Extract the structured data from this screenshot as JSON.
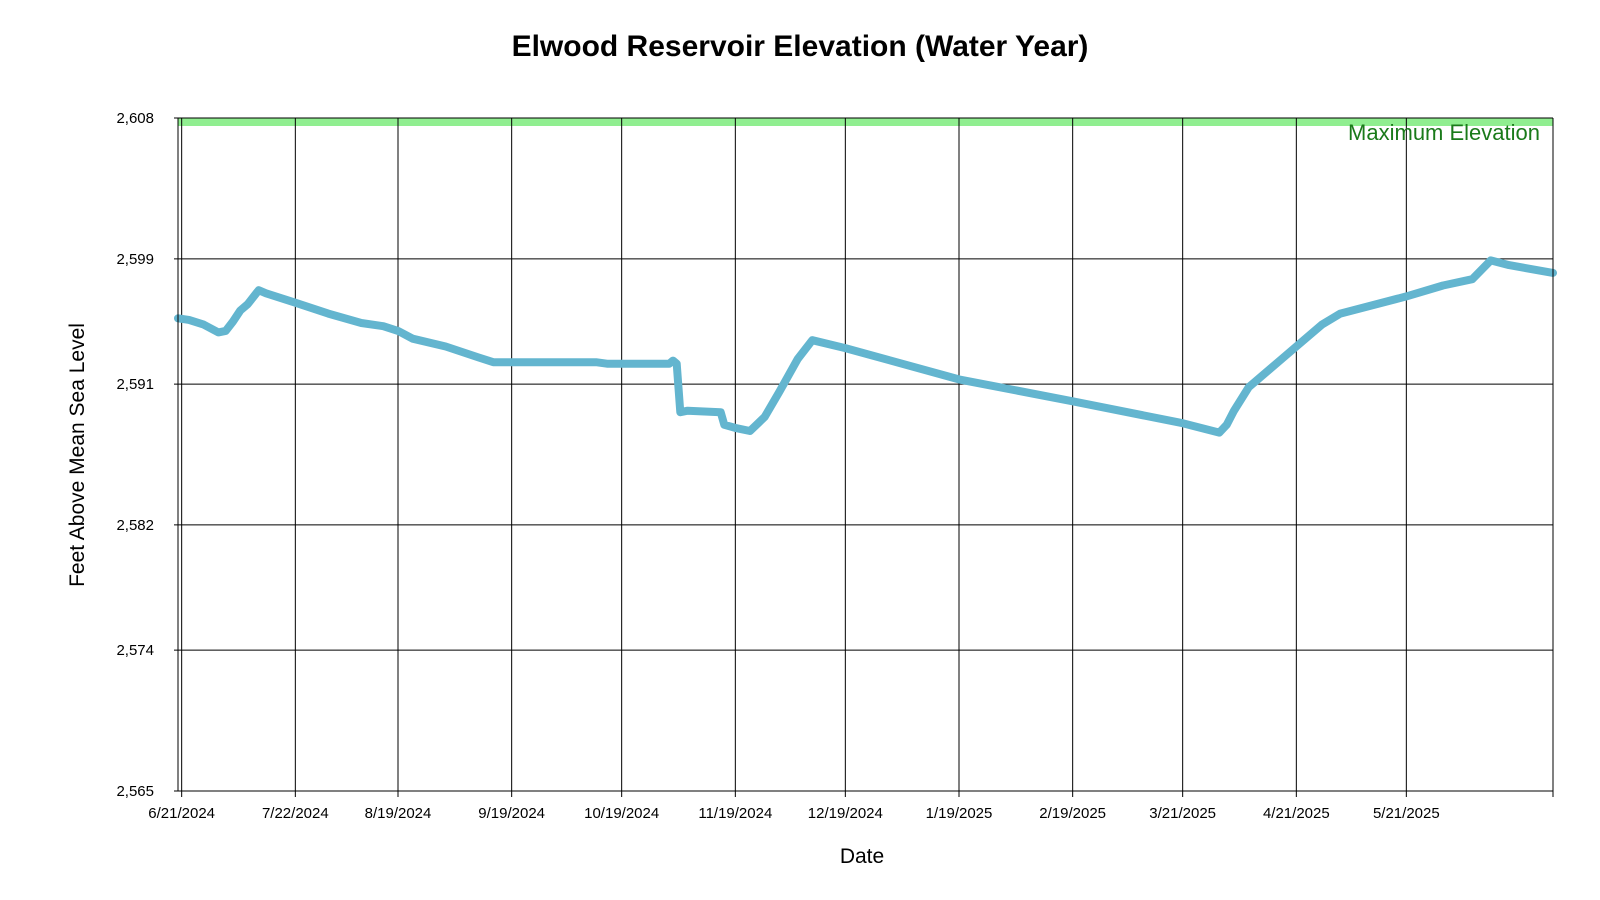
{
  "chart_data": {
    "type": "line",
    "title": "Elwood Reservoir Elevation (Water Year)",
    "xlabel": "Date",
    "ylabel": "Feet Above Mean Sea Level",
    "x_range": [
      "2024-06-20",
      "2025-06-30"
    ],
    "ylim": [
      2565,
      2608
    ],
    "y_ticks": [
      2565,
      2574,
      2582,
      2591,
      2599,
      2608
    ],
    "y_tick_labels": [
      "2,565",
      "2,574",
      "2,582",
      "2,591",
      "2,599",
      "2,608"
    ],
    "x_ticks": [
      "2024-06-21",
      "2024-07-22",
      "2024-08-19",
      "2024-09-19",
      "2024-10-19",
      "2024-11-19",
      "2024-12-19",
      "2025-01-19",
      "2025-02-19",
      "2025-03-21",
      "2025-04-21",
      "2025-05-21"
    ],
    "x_tick_labels": [
      "6/21/2024",
      "7/22/2024",
      "8/19/2024",
      "9/19/2024",
      "10/19/2024",
      "11/19/2024",
      "12/19/2024",
      "1/19/2025",
      "2/19/2025",
      "3/21/2025",
      "4/21/2025",
      "5/21/2025"
    ],
    "grid": true,
    "maximum_elevation": {
      "label": "Maximum Elevation",
      "value": 2608,
      "color": "#90ee90",
      "text_color": "#1a7a1a"
    },
    "series": [
      {
        "color": "#63b5cf",
        "points": [
          [
            "2024-06-20",
            2595.2
          ],
          [
            "2024-06-23",
            2595.1
          ],
          [
            "2024-06-27",
            2594.8
          ],
          [
            "2024-07-01",
            2594.3
          ],
          [
            "2024-07-03",
            2594.4
          ],
          [
            "2024-07-05",
            2595.0
          ],
          [
            "2024-07-07",
            2595.7
          ],
          [
            "2024-07-09",
            2596.1
          ],
          [
            "2024-07-11",
            2596.7
          ],
          [
            "2024-07-12",
            2597.0
          ],
          [
            "2024-07-14",
            2596.8
          ],
          [
            "2024-07-22",
            2596.2
          ],
          [
            "2024-07-31",
            2595.5
          ],
          [
            "2024-08-09",
            2594.9
          ],
          [
            "2024-08-15",
            2594.7
          ],
          [
            "2024-08-19",
            2594.4
          ],
          [
            "2024-08-23",
            2593.9
          ],
          [
            "2024-09-01",
            2593.4
          ],
          [
            "2024-09-10",
            2592.7
          ],
          [
            "2024-09-14",
            2592.4
          ],
          [
            "2024-10-12",
            2592.4
          ],
          [
            "2024-10-15",
            2592.3
          ],
          [
            "2024-11-01",
            2592.3
          ],
          [
            "2024-11-02",
            2592.5
          ],
          [
            "2024-11-03",
            2592.3
          ],
          [
            "2024-11-04",
            2589.2
          ],
          [
            "2024-11-06",
            2589.3
          ],
          [
            "2024-11-15",
            2589.2
          ],
          [
            "2024-11-16",
            2588.4
          ],
          [
            "2024-11-19",
            2588.2
          ],
          [
            "2024-11-23",
            2588.0
          ],
          [
            "2024-11-27",
            2588.9
          ],
          [
            "2024-12-01",
            2590.5
          ],
          [
            "2024-12-06",
            2592.6
          ],
          [
            "2024-12-10",
            2593.8
          ],
          [
            "2024-12-19",
            2593.3
          ],
          [
            "2025-01-19",
            2591.3
          ],
          [
            "2025-02-19",
            2589.9
          ],
          [
            "2025-03-21",
            2588.5
          ],
          [
            "2025-03-31",
            2587.9
          ],
          [
            "2025-04-02",
            2588.4
          ],
          [
            "2025-04-04",
            2589.3
          ],
          [
            "2025-04-08",
            2590.8
          ],
          [
            "2025-04-17",
            2592.6
          ],
          [
            "2025-04-21",
            2593.4
          ],
          [
            "2025-04-28",
            2594.8
          ],
          [
            "2025-05-03",
            2595.5
          ],
          [
            "2025-05-21",
            2596.6
          ],
          [
            "2025-05-31",
            2597.3
          ],
          [
            "2025-06-08",
            2597.7
          ],
          [
            "2025-06-13",
            2598.9
          ],
          [
            "2025-06-18",
            2598.6
          ],
          [
            "2025-06-30",
            2598.1
          ]
        ]
      }
    ]
  }
}
